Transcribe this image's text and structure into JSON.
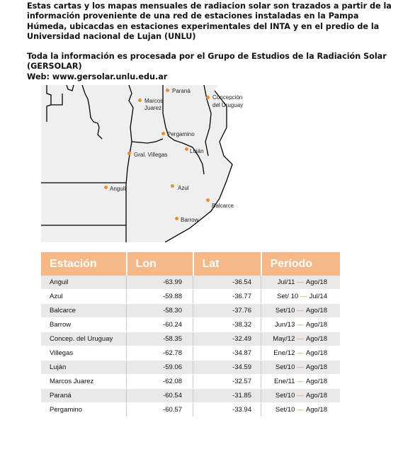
{
  "intro": {
    "paragraph1": "Estas cartas y los mapas mensuales de radiacion solar son trazados a partir de la información proveniente de una red de estaciones instaladas en la Pampa Húmeda, ubicacdas en estaciones experimentales del INTA y en el predio de la Universidad nacional de Lujan (UNLU)",
    "paragraph2": "Toda la información es procesada por el Grupo de Estudios de la Radiación Solar (GERSOLAR)",
    "web": "Web: www.gersolar.unlu.edu.ar"
  },
  "map": {
    "dot_color": "#e8902b",
    "labels": {
      "parana": "Paraná",
      "marcos_juarez_1": "Marcos",
      "marcos_juarez_2": "Juarez",
      "concepcion_1": "Concepción",
      "concepcion_2": "del Uruguay",
      "pergamino": "Pergamino",
      "lujan": "Luján",
      "villegas": "Gral. Villegas",
      "anguil": "Anguil",
      "azul": "Azul",
      "balcarce": "Balcarce",
      "barrow": "Barrow"
    }
  },
  "table": {
    "header_color": "#f7b888",
    "headers": {
      "station": "Estación",
      "lon": "Lon",
      "lat": "Lat",
      "period": "Período"
    },
    "rows": [
      {
        "name": "Anguil",
        "lon": "-63.99",
        "lat": "-36.54",
        "start": "Jul/11",
        "end": "Ago/18"
      },
      {
        "name": "Azul",
        "lon": "-59.88",
        "lat": "-36.77",
        "start": "Set/ 10",
        "end": "Jul/14"
      },
      {
        "name": "Balcarce",
        "lon": "-58.30",
        "lat": "-37.76",
        "start": "Set/10",
        "end": "Ago/18"
      },
      {
        "name": "Barrow",
        "lon": "-60.24",
        "lat": "-38.32",
        "start": "Jun/13",
        "end": "Ago/18"
      },
      {
        "name": "Concep. del Uruguay",
        "lon": "-58.35",
        "lat": "-32.49",
        "start": "May/12",
        "end": "Ago/18"
      },
      {
        "name": "Villegas",
        "lon": "-62.78",
        "lat": "-34.87",
        "start": "Ene/12",
        "end": "Ago/18"
      },
      {
        "name": "Luján",
        "lon": "-59.06",
        "lat": "-34.59",
        "start": "Set/10",
        "end": "Ago/18"
      },
      {
        "name": "Marcos Juarez",
        "lon": "-62.08",
        "lat": "-32.57",
        "start": "Ene/11",
        "end": "Ago/18"
      },
      {
        "name": "Paraná",
        "lon": "-60.54",
        "lat": "-31.85",
        "start": "Set/10",
        "end": "Ago/18"
      },
      {
        "name": "Pergamino",
        "lon": "-60.57",
        "lat": "-33.94",
        "start": "Set/10",
        "end": "Ago/18"
      }
    ]
  }
}
